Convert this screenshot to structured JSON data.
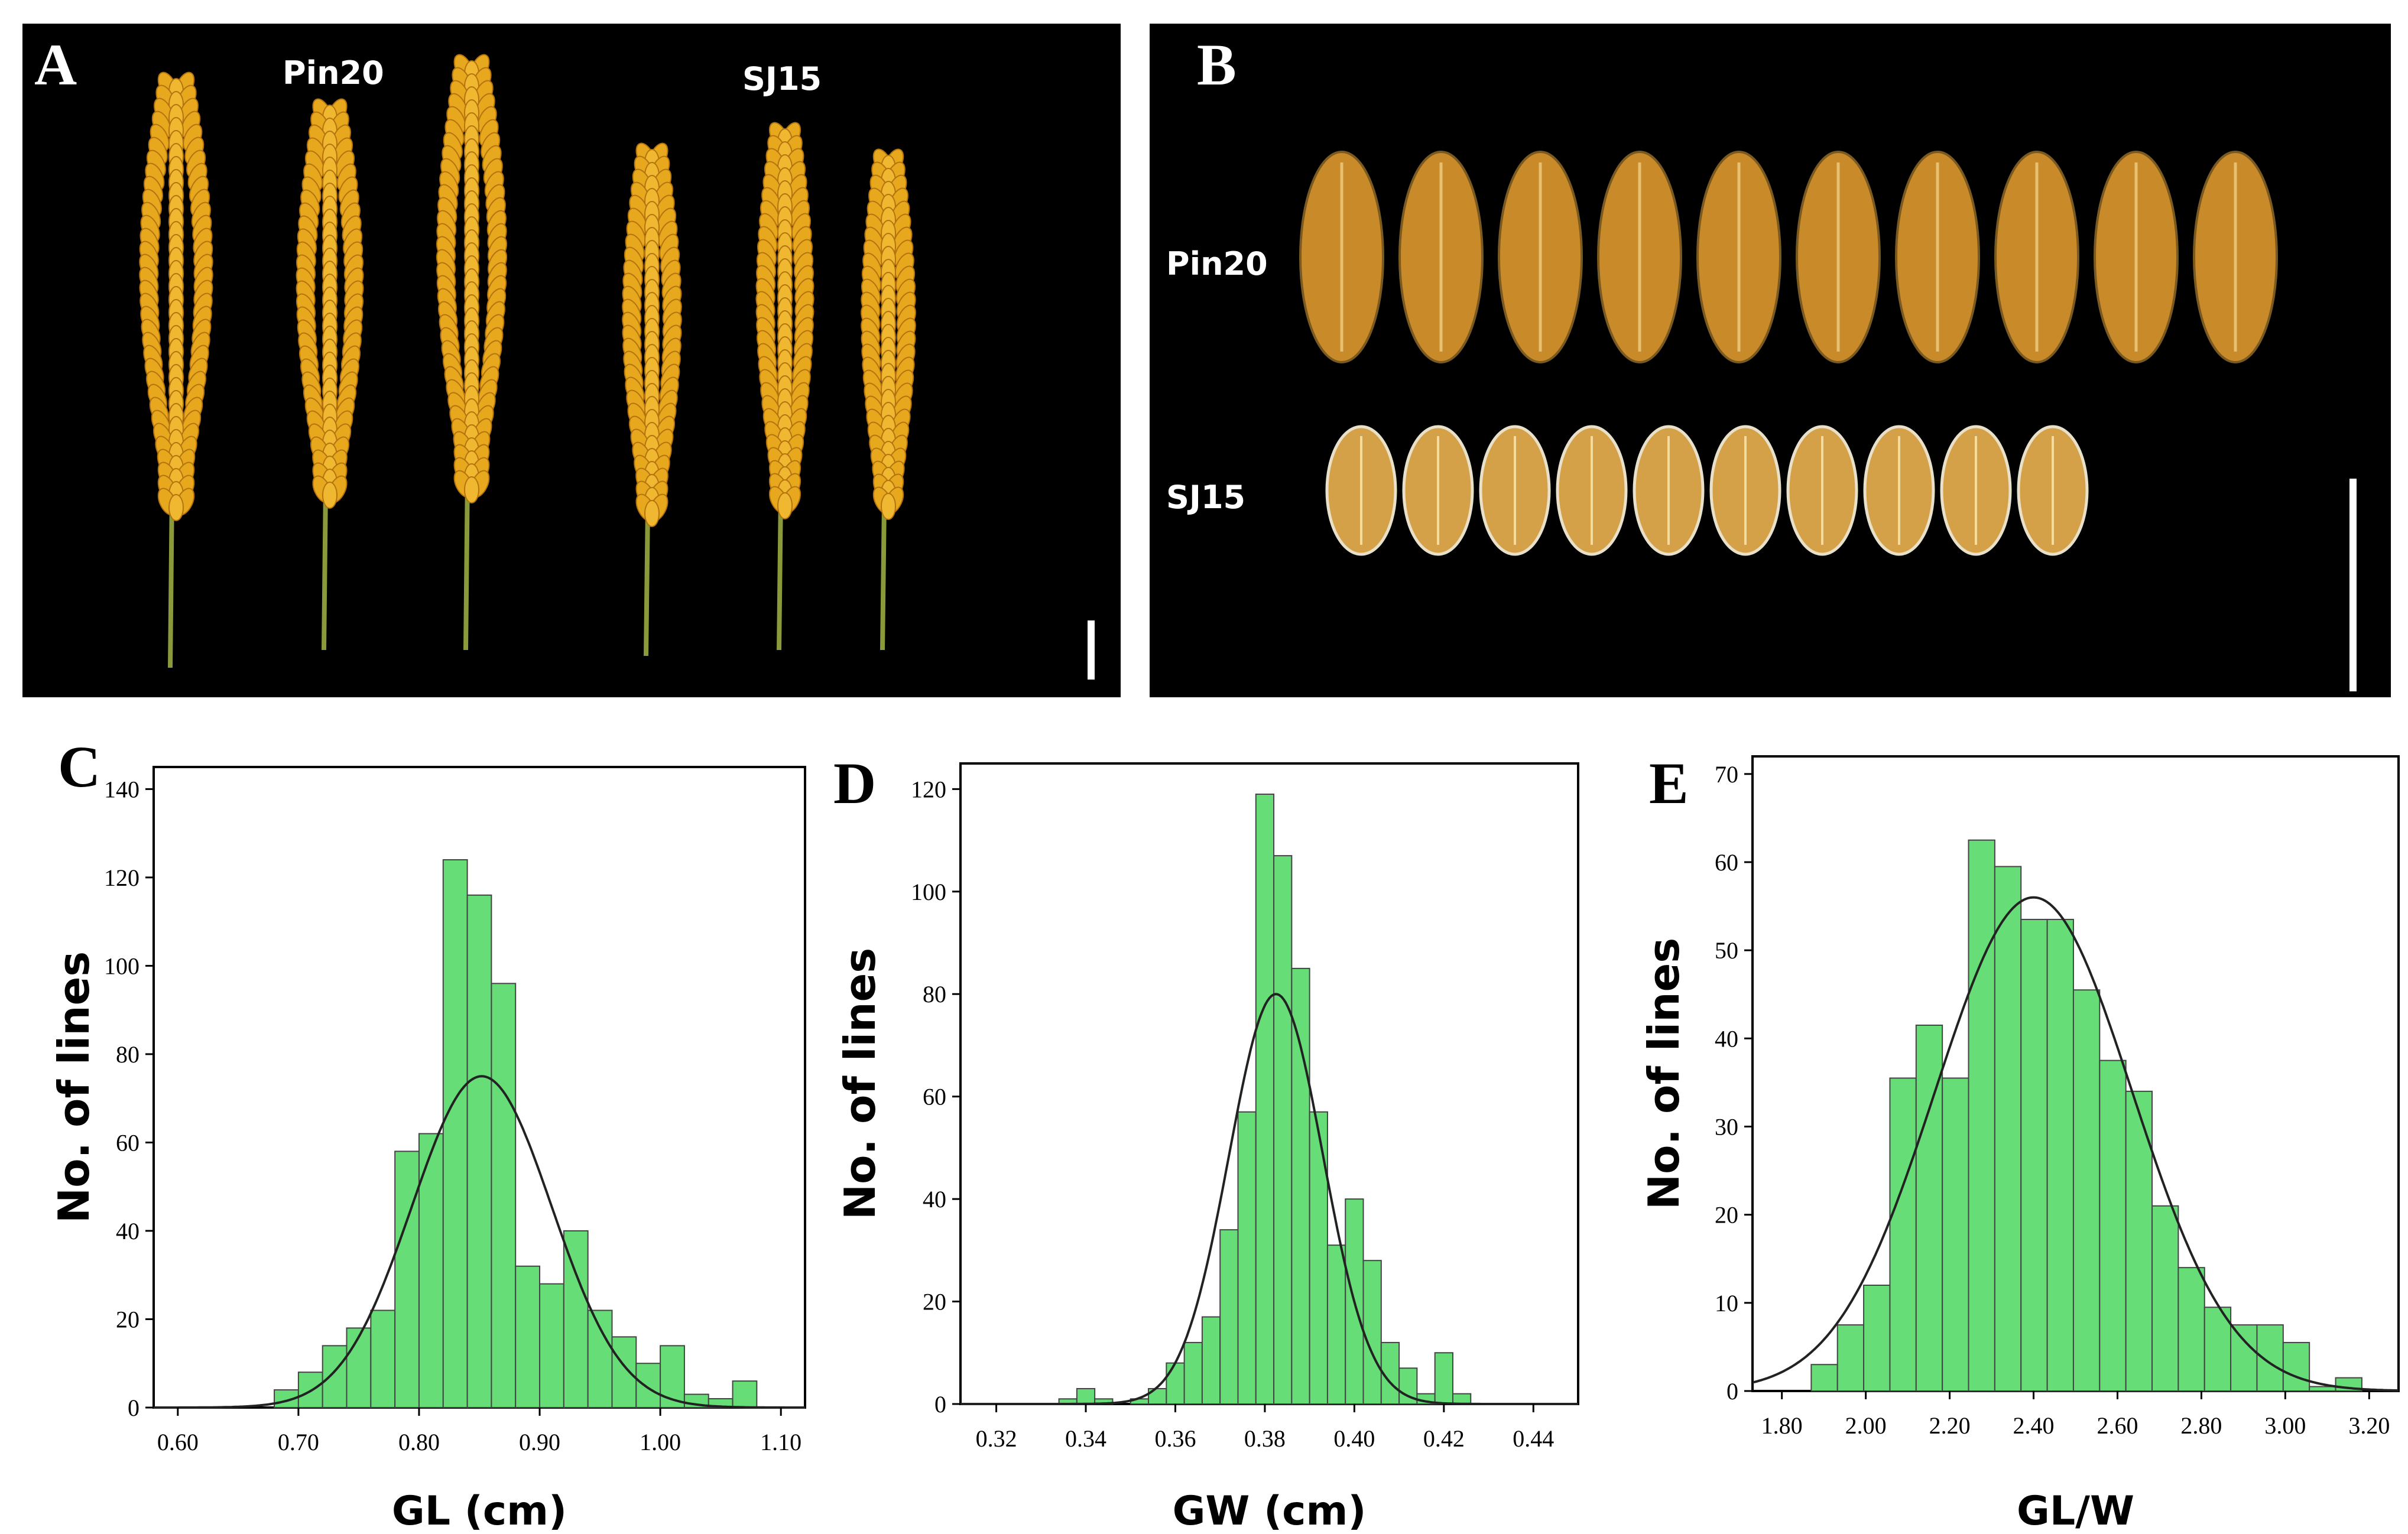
{
  "panel_a": {
    "letter": "A",
    "labels": [
      "Pin20",
      "SJ15"
    ]
  },
  "panel_b": {
    "letter": "B",
    "labels": [
      "Pin20",
      "SJ15"
    ]
  },
  "colors": {
    "bar": "#66dd77",
    "bar_edge": "#444444",
    "panicle": "#e8a81e",
    "grain": "#c98a2a",
    "curve": "#222222"
  },
  "chart_data": [
    {
      "panel": "C",
      "type": "bar",
      "xlabel": "GL (cm)",
      "ylabel": "No. of lines",
      "xlim": [
        0.58,
        1.12
      ],
      "ylim": [
        0,
        145
      ],
      "xticks": [
        0.6,
        0.7,
        0.8,
        0.9,
        1.0,
        1.1
      ],
      "xtick_labels": [
        "0.60",
        "0.70",
        "0.80",
        "0.90",
        "1.00",
        "1.10"
      ],
      "yticks": [
        0,
        20,
        40,
        60,
        80,
        100,
        120,
        140
      ],
      "ytick_labels": [
        "0",
        "20",
        "40",
        "60",
        "80",
        "100",
        "120",
        "140"
      ],
      "bin_start": 0.68,
      "bin_width": 0.02,
      "values": [
        4,
        8,
        14,
        18,
        22,
        58,
        62,
        124,
        116,
        96,
        32,
        28,
        40,
        22,
        16,
        10,
        14,
        3,
        2,
        6
      ],
      "curve": {
        "mean": 0.852,
        "sd": 0.058,
        "peak": 75
      }
    },
    {
      "panel": "D",
      "type": "bar",
      "xlabel": "GW (cm)",
      "ylabel": "No. of lines",
      "xlim": [
        0.312,
        0.45
      ],
      "ylim": [
        0,
        125
      ],
      "xticks": [
        0.32,
        0.34,
        0.36,
        0.38,
        0.4,
        0.42,
        0.44
      ],
      "xtick_labels": [
        "0.32",
        "0.34",
        "0.36",
        "0.38",
        "0.40",
        "0.42",
        "0.44"
      ],
      "yticks": [
        0,
        20,
        40,
        60,
        80,
        100,
        120
      ],
      "ytick_labels": [
        "0",
        "20",
        "40",
        "60",
        "80",
        "100",
        "120"
      ],
      "bin_start": 0.334,
      "bin_width": 0.004,
      "values": [
        1,
        3,
        1,
        0,
        1,
        3,
        8,
        12,
        17,
        34,
        57,
        119,
        107,
        85,
        57,
        31,
        40,
        28,
        12,
        7,
        2,
        10,
        2
      ],
      "curve": {
        "mean": 0.3825,
        "sd": 0.0105,
        "peak": 80
      }
    },
    {
      "panel": "E",
      "type": "bar",
      "xlabel": "GL/W",
      "ylabel": "No. of lines",
      "xlim": [
        1.73,
        3.27
      ],
      "ylim": [
        0,
        72
      ],
      "xticks": [
        1.8,
        2.0,
        2.2,
        2.4,
        2.6,
        2.8,
        3.0,
        3.2
      ],
      "xtick_labels": [
        "1.80",
        "2.00",
        "2.20",
        "2.40",
        "2.60",
        "2.80",
        "3.00",
        "3.20"
      ],
      "yticks": [
        0,
        10,
        20,
        30,
        40,
        50,
        60,
        70
      ],
      "ytick_labels": [
        "0",
        "10",
        "20",
        "30",
        "40",
        "50",
        "60",
        "70"
      ],
      "bin_start": 1.87,
      "bin_width": 0.0625,
      "values": [
        3,
        7.5,
        12,
        35.5,
        41.5,
        35.5,
        62.5,
        59.5,
        53.5,
        53.5,
        45.5,
        37.5,
        34,
        21,
        14,
        9.5,
        7.5,
        7.5,
        5.5,
        0.5,
        1.5
      ],
      "curve": {
        "mean": 2.4,
        "sd": 0.235,
        "peak": 56
      }
    }
  ]
}
